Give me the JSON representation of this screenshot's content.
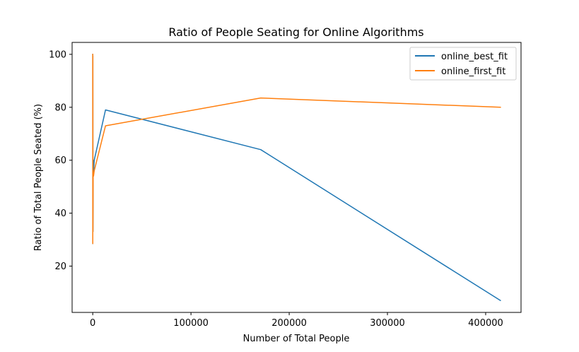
{
  "chart_data": {
    "type": "line",
    "title": "Ratio of People Seating for Online Algorithms",
    "xlabel": "Number of Total People",
    "ylabel": "Ratio of Total People Seated (%)",
    "xlim": [
      -21000,
      436000
    ],
    "ylim": [
      2.5,
      104.5
    ],
    "xticks": [
      0,
      100000,
      200000,
      300000,
      400000
    ],
    "xtick_labels": [
      "0",
      "100000",
      "200000",
      "300000",
      "400000"
    ],
    "yticks": [
      20,
      40,
      60,
      80,
      100
    ],
    "ytick_labels": [
      "20",
      "40",
      "60",
      "80",
      "100"
    ],
    "grid": false,
    "legend_position": "top-right",
    "series": [
      {
        "name": "online_best_fit",
        "color": "#1f77b4",
        "x": [
          10,
          50,
          100,
          200,
          400,
          800,
          1500,
          13000,
          171000,
          415000
        ],
        "y": [
          100,
          28.5,
          99.5,
          33,
          60,
          55,
          60,
          79,
          64,
          7
        ]
      },
      {
        "name": "online_first_fit",
        "color": "#ff7f0e",
        "x": [
          10,
          50,
          100,
          200,
          400,
          800,
          1500,
          13000,
          171000,
          415000
        ],
        "y": [
          100,
          28.5,
          99.5,
          33,
          55,
          54,
          56,
          73,
          83.5,
          80
        ]
      }
    ]
  }
}
